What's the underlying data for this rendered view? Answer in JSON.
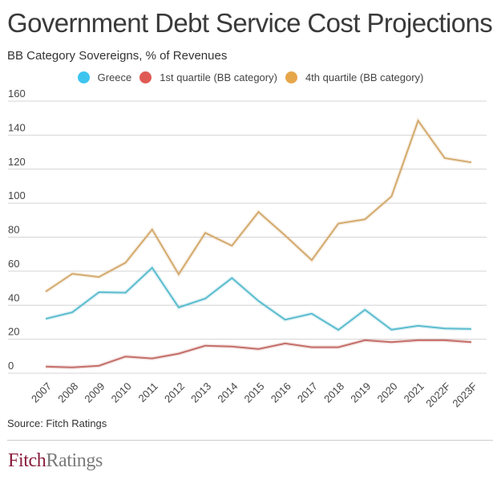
{
  "header": {
    "title": "Government Debt Service Cost Projections",
    "subtitle": "BB Category Sovereigns, % of Revenues"
  },
  "legend": [
    {
      "name": "Greece",
      "color": "#3dc5ef"
    },
    {
      "name": "1st quartile (BB category)",
      "color": "#e05a55"
    },
    {
      "name": "4th quartile (BB category)",
      "color": "#e6a64a"
    }
  ],
  "chart_data": {
    "type": "line",
    "title": "Government Debt Service Cost Projections",
    "subtitle": "BB Category Sovereigns, % of Revenues",
    "xlabel": "",
    "ylabel": "",
    "ylim": [
      0,
      160
    ],
    "yticks": [
      0,
      20,
      40,
      60,
      80,
      100,
      120,
      140,
      160
    ],
    "grid": true,
    "legend_position": "top-center",
    "x": [
      "2007",
      "2008",
      "2009",
      "2010",
      "2011",
      "2012",
      "2013",
      "2014",
      "2015",
      "2016",
      "2017",
      "2018",
      "2019",
      "2020",
      "2021",
      "2022F",
      "2023F"
    ],
    "series": [
      {
        "name": "Greece",
        "line_color": "#5bbccf",
        "values": [
          32,
          35.8,
          47.6,
          47.4,
          62,
          38.7,
          43.9,
          56,
          42.5,
          31.5,
          35,
          25.5,
          37.3,
          25.6,
          27.9,
          26.3,
          26
        ]
      },
      {
        "name": "1st quartile (BB category)",
        "line_color": "#c46e68",
        "values": [
          3.9,
          3.4,
          4.4,
          9.8,
          8.7,
          11.5,
          16.2,
          15.7,
          14.2,
          17.5,
          15.3,
          15.3,
          19.4,
          18.3,
          19.4,
          19.4,
          18.3
        ]
      },
      {
        "name": "4th quartile (BB category)",
        "line_color": "#d4aa6e",
        "values": [
          48,
          58.5,
          56.6,
          65,
          84.5,
          58.2,
          82.5,
          75,
          94.8,
          81,
          66.5,
          88,
          90.5,
          104,
          148.5,
          126.5,
          124
        ]
      }
    ]
  },
  "footer": {
    "source": "Source: Fitch Ratings",
    "logo_part1": "Fitch",
    "logo_part2": "Ratings"
  }
}
